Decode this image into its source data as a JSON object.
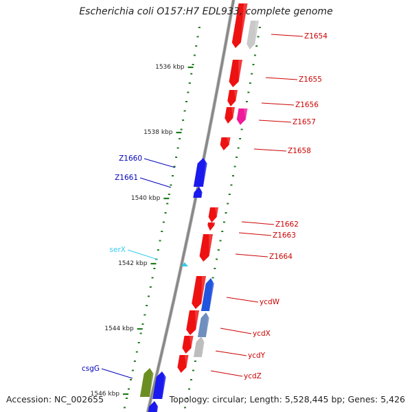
{
  "title": "Escherichia coli O157:H7 EDL933, complete genome",
  "footer": {
    "accession": "Accession: NC_002655",
    "summary": "Topology: circular; Length: 5,528,445 bp; Genes: 5,426"
  },
  "colors": {
    "forward_gene": "#ee1111",
    "reverse_gene": "#1a1aee",
    "label_forward": "#cc0000",
    "label_reverse": "#0000bb",
    "trna": "#33ccee",
    "ticks": "#1e7a1e",
    "backbone": "#888888"
  },
  "scale_labels": [
    "1536 kbp",
    "1538 kbp",
    "1540 kbp",
    "1542 kbp",
    "1544 kbp",
    "1546 kbp"
  ],
  "genes": [
    {
      "label": "Z1654",
      "strand": "forward"
    },
    {
      "label": "Z1655",
      "strand": "forward"
    },
    {
      "label": "Z1656",
      "strand": "forward"
    },
    {
      "label": "Z1657",
      "strand": "forward"
    },
    {
      "label": "Z1658",
      "strand": "forward"
    },
    {
      "label": "Z1660",
      "strand": "reverse"
    },
    {
      "label": "Z1661",
      "strand": "reverse"
    },
    {
      "label": "Z1662",
      "strand": "forward"
    },
    {
      "label": "Z1663",
      "strand": "forward"
    },
    {
      "label": "Z1664",
      "strand": "forward"
    },
    {
      "label": "serX",
      "strand": "reverse",
      "type": "tRNA"
    },
    {
      "label": "ycdW",
      "strand": "forward"
    },
    {
      "label": "ycdX",
      "strand": "forward"
    },
    {
      "label": "ycdY",
      "strand": "forward"
    },
    {
      "label": "ycdZ",
      "strand": "forward"
    },
    {
      "label": "csgG",
      "strand": "reverse"
    }
  ]
}
